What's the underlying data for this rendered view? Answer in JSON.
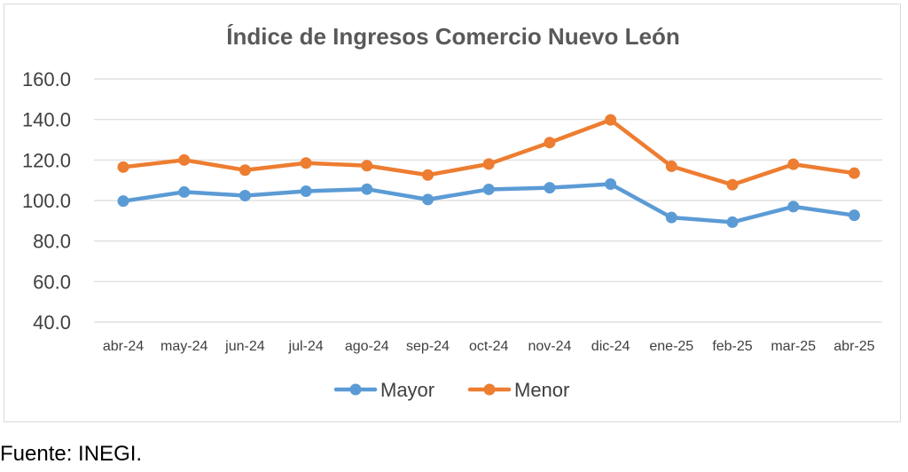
{
  "chart_data": {
    "type": "line",
    "title": "Índice de Ingresos Comercio Nuevo León",
    "categories": [
      "abr-24",
      "may-24",
      "jun-24",
      "jul-24",
      "ago-24",
      "sep-24",
      "oct-24",
      "nov-24",
      "dic-24",
      "ene-25",
      "feb-25",
      "mar-25",
      "abr-25"
    ],
    "series": [
      {
        "name": "Mayor",
        "color": "#5b9bd5",
        "values": [
          99.7,
          104.2,
          102.4,
          104.6,
          105.6,
          100.5,
          105.5,
          106.3,
          108.1,
          91.6,
          89.3,
          97.0,
          92.7
        ]
      },
      {
        "name": "Menor",
        "color": "#ed7d31",
        "values": [
          116.5,
          120.0,
          115.0,
          118.5,
          117.2,
          112.6,
          118.0,
          128.6,
          139.8,
          116.9,
          107.8,
          117.9,
          113.5
        ]
      }
    ],
    "ylim": [
      40,
      160
    ],
    "yticks": [
      "40.0",
      "60.0",
      "80.0",
      "100.0",
      "120.0",
      "140.0",
      "160.0"
    ],
    "ytick_values": [
      40,
      60,
      80,
      100,
      120,
      140,
      160
    ],
    "xlabel": "",
    "ylabel": "",
    "grid": true,
    "gridline_color": "#d9d9d9",
    "legend_position": "bottom"
  },
  "source_note": "Fuente: INEGI."
}
